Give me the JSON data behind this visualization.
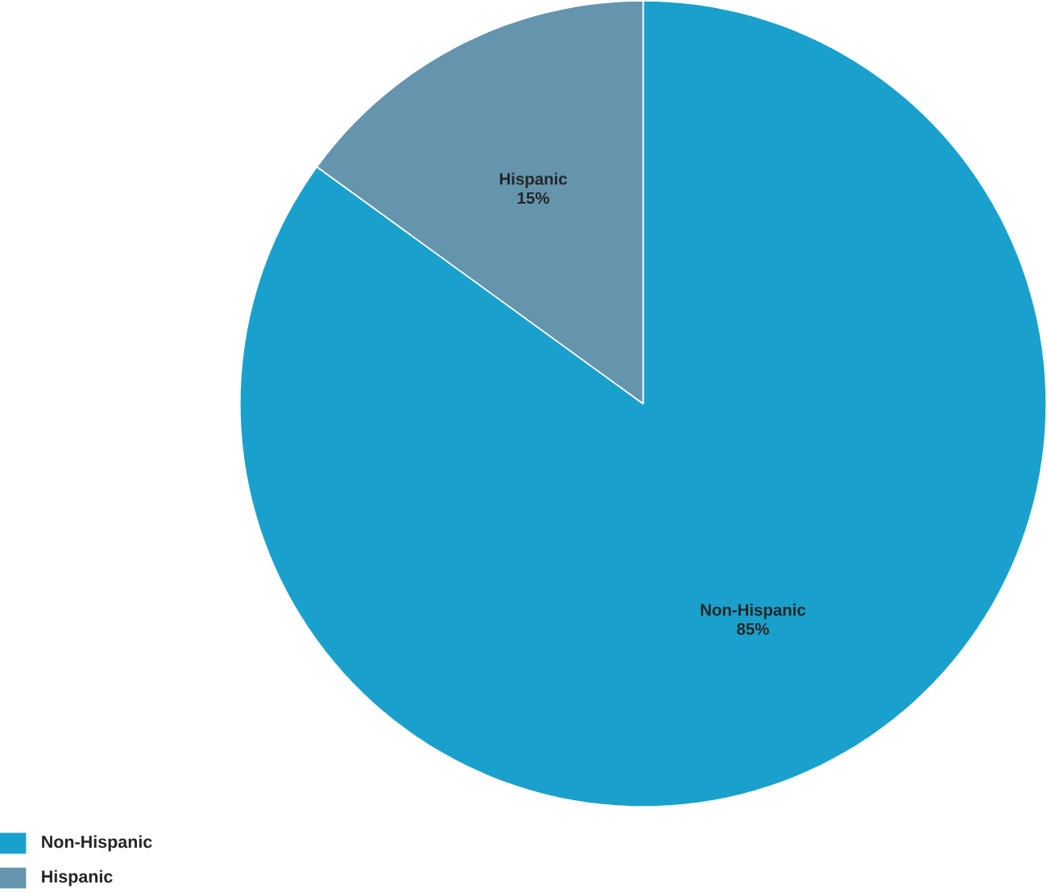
{
  "chart_data": {
    "type": "pie",
    "categories": [
      "Non-Hispanic",
      "Hispanic"
    ],
    "values": [
      85,
      15
    ],
    "colors": [
      "#1aa0cc",
      "#6594ad"
    ],
    "value_labels": [
      "85%",
      "15%"
    ],
    "legend": "bottom left"
  }
}
